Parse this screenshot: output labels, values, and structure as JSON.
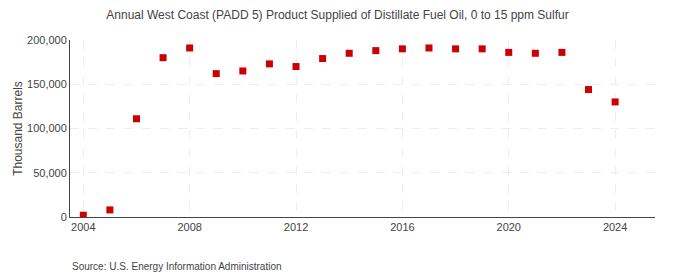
{
  "chart_data": {
    "type": "scatter",
    "title": "Annual West Coast (PADD 5) Product Supplied of Distillate Fuel Oil, 0 to 15 ppm Sulfur",
    "ylabel": "Thousand Barrels",
    "annotations": [
      "Source: U.S. Energy Information Administration"
    ],
    "x": [
      2004,
      2005,
      2006,
      2007,
      2008,
      2009,
      2010,
      2011,
      2012,
      2013,
      2014,
      2015,
      2016,
      2017,
      2018,
      2019,
      2020,
      2021,
      2022,
      2023,
      2024
    ],
    "values": [
      2000,
      8000,
      111000,
      180000,
      191000,
      162000,
      165000,
      173000,
      170000,
      179000,
      185000,
      188000,
      190000,
      191000,
      190000,
      190000,
      186000,
      185000,
      186000,
      144000,
      130000
    ],
    "color": "#cc0000",
    "marker": "square",
    "xlim": [
      2003.5,
      2025.5
    ],
    "xticks": [
      2004,
      2008,
      2012,
      2016,
      2020,
      2024
    ],
    "ylim": [
      0,
      200000
    ],
    "yticks": [
      0,
      {
        "value": 50000,
        "label": "50,000"
      },
      {
        "value": 100000,
        "label": "100,000"
      },
      {
        "value": 150000,
        "label": "150,000"
      },
      {
        "value": 200000,
        "label": "200,000"
      }
    ],
    "grid": true
  }
}
